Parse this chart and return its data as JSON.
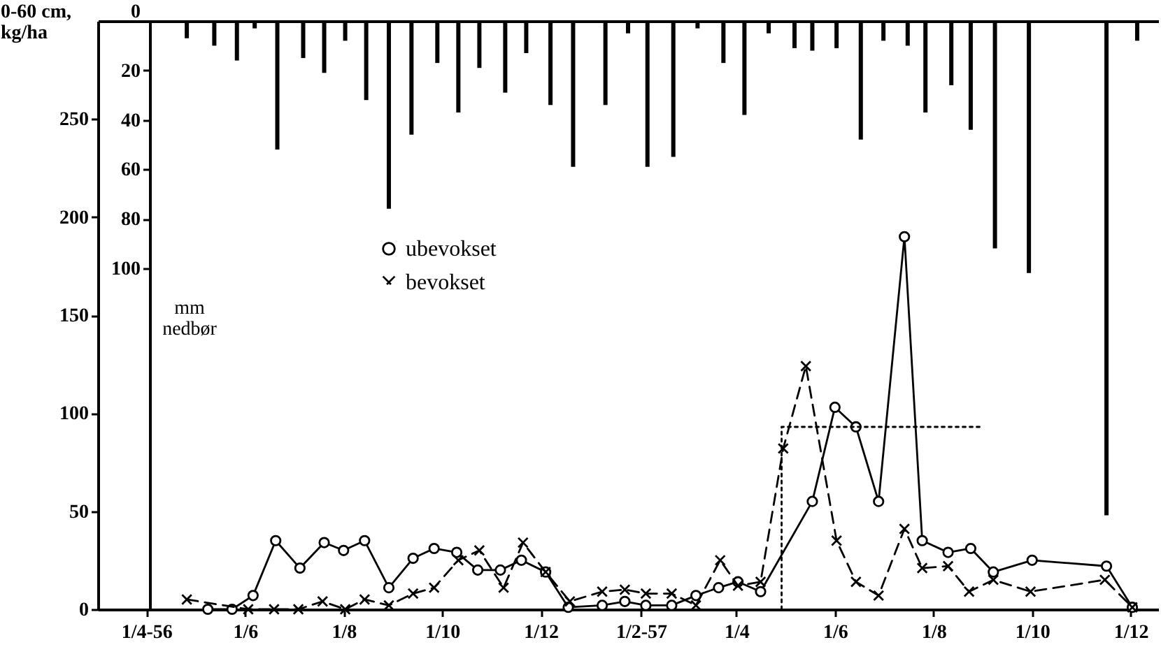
{
  "chart_data": {
    "type": "line",
    "ylabel": "0-60 cm, kg/ha",
    "y2label": "mm nedbør",
    "legend": "top left",
    "xlim": [
      "1956-03-02",
      "1957-12-18"
    ],
    "xticks": [
      {
        "value": "1956-04-01",
        "label": "1/4-56"
      },
      {
        "value": "1956-06-01",
        "label": "1/6"
      },
      {
        "value": "1956-08-01",
        "label": "1/8"
      },
      {
        "value": "1956-10-01",
        "label": "1/10"
      },
      {
        "value": "1956-12-01",
        "label": "1/12"
      },
      {
        "value": "1957-02-01",
        "label": "1/2-57"
      },
      {
        "value": "1957-04-01",
        "label": "1/4"
      },
      {
        "value": "1957-06-01",
        "label": "1/6"
      },
      {
        "value": "1957-08-01",
        "label": "1/8"
      },
      {
        "value": "1957-10-01",
        "label": "1/10"
      },
      {
        "value": "1957-12-01",
        "label": "1/12"
      }
    ],
    "ylim": [
      0,
      300
    ],
    "yticks": [
      0,
      50,
      100,
      150,
      200,
      250
    ],
    "y2lim": [
      238,
      0
    ],
    "y2ticks": [
      0,
      20,
      40,
      60,
      80,
      100
    ],
    "series": [
      {
        "name": "ubevokset",
        "color": "#000000",
        "marker": "circle",
        "line_style": "solid",
        "x": [
          "1956-05-09",
          "1956-05-24",
          "1956-06-06",
          "1956-06-20",
          "1956-07-05",
          "1956-07-20",
          "1956-08-01",
          "1956-08-14",
          "1956-08-29",
          "1956-09-13",
          "1956-09-26",
          "1956-10-10",
          "1956-10-23",
          "1956-11-06",
          "1956-11-19",
          "1956-12-04",
          "1956-12-18",
          "1957-01-08",
          "1957-01-22",
          "1957-02-04",
          "1957-02-20",
          "1957-03-07",
          "1957-03-21",
          "1957-04-02",
          "1957-04-16",
          "1957-05-18",
          "1957-06-01",
          "1957-06-14",
          "1957-06-28",
          "1957-07-14",
          "1957-07-25",
          "1957-08-10",
          "1957-08-24",
          "1957-09-07",
          "1957-10-01",
          "1957-11-16",
          "1957-12-02"
        ],
        "values": [
          0,
          0,
          7,
          35,
          21,
          34,
          30,
          35,
          11,
          26,
          31,
          29,
          20,
          20,
          25,
          19,
          1,
          2,
          4,
          2,
          2,
          7,
          11,
          14,
          9,
          55,
          103,
          93,
          55,
          190,
          35,
          29,
          31,
          19,
          25,
          22,
          1
        ]
      },
      {
        "name": "bevokset",
        "color": "#000000",
        "marker": "cross",
        "line_style": "dashed",
        "x": [
          "1956-04-26",
          "1956-06-03",
          "1956-06-19",
          "1956-07-04",
          "1956-07-19",
          "1956-08-02",
          "1956-08-14",
          "1956-08-29",
          "1956-09-13",
          "1956-09-26",
          "1956-10-11",
          "1956-10-24",
          "1956-11-08",
          "1956-11-20",
          "1956-12-04",
          "1956-12-19",
          "1957-01-08",
          "1957-01-22",
          "1957-02-04",
          "1957-02-20",
          "1957-03-07",
          "1957-03-22",
          "1957-04-02",
          "1957-04-16",
          "1957-04-30",
          "1957-05-14",
          "1957-06-02",
          "1957-06-14",
          "1957-06-28",
          "1957-07-14",
          "1957-07-25",
          "1957-08-10",
          "1957-08-23",
          "1957-09-07",
          "1957-09-30",
          "1957-11-15",
          "1957-12-02"
        ],
        "values": [
          5,
          0,
          0,
          0,
          4,
          0,
          5,
          2,
          8,
          11,
          25,
          30,
          11,
          34,
          19,
          4,
          9,
          10,
          8,
          8,
          2,
          25,
          12,
          14,
          82,
          124,
          35,
          14,
          7,
          41,
          21,
          22,
          9,
          15,
          9,
          15,
          1
        ]
      },
      {
        "type": "line",
        "color": "#000000",
        "marker": "none",
        "line_style": "dotted",
        "x": [
          "1957-04-29",
          "1957-04-29",
          "1957-09-01"
        ],
        "values": [
          0,
          93,
          93
        ]
      },
      {
        "type": "bar",
        "axis": "y2",
        "color": "#000000",
        "x": [
          "1956-04-26",
          "1956-05-13",
          "1956-05-27",
          "1956-06-07",
          "1956-06-21",
          "1956-07-07",
          "1956-07-20",
          "1956-08-02",
          "1956-08-15",
          "1956-08-29",
          "1956-09-12",
          "1956-09-28",
          "1956-10-11",
          "1956-10-24",
          "1956-11-09",
          "1956-11-22",
          "1956-12-07",
          "1956-12-21",
          "1957-01-10",
          "1957-01-24",
          "1957-02-05",
          "1957-02-21",
          "1957-03-08",
          "1957-03-24",
          "1957-04-06",
          "1957-04-21",
          "1957-05-07",
          "1957-05-18",
          "1957-06-02",
          "1957-06-17",
          "1957-07-01",
          "1957-07-16",
          "1957-07-27",
          "1957-08-12",
          "1957-08-24",
          "1957-09-08",
          "1957-09-29",
          "1957-11-16",
          "1957-12-05"
        ],
        "values": [
          7,
          10,
          16,
          3,
          52,
          15,
          21,
          8,
          32,
          76,
          46,
          17,
          37,
          19,
          29,
          13,
          34,
          59,
          34,
          5,
          59,
          55,
          3,
          17,
          38,
          5,
          11,
          12,
          11,
          48,
          8,
          10,
          37,
          26,
          44,
          92,
          102,
          200,
          8
        ]
      }
    ]
  }
}
